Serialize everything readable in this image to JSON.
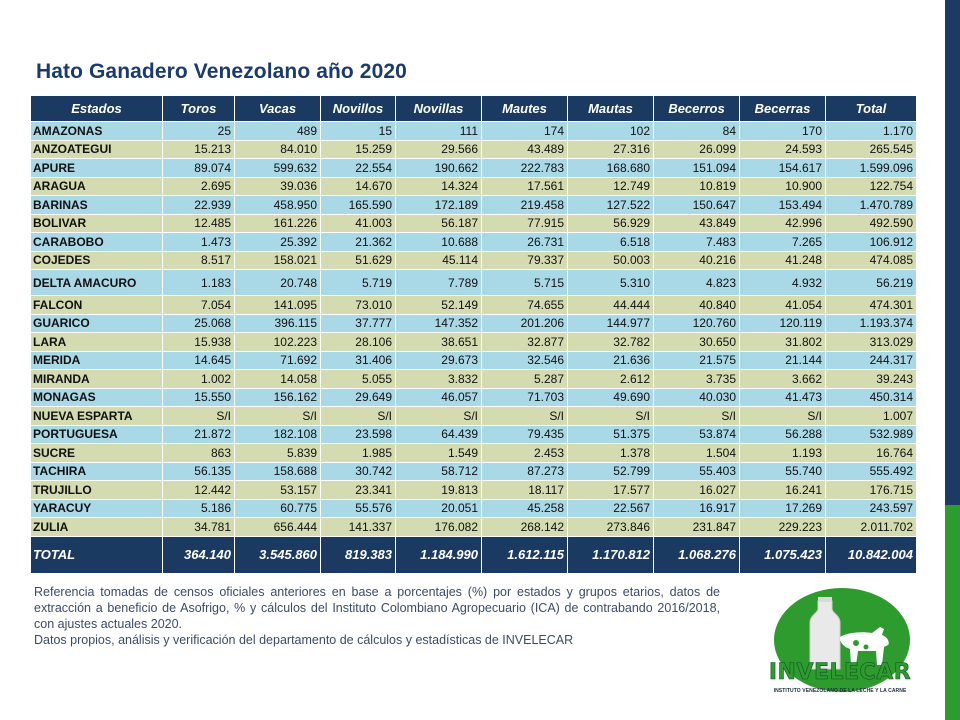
{
  "title": "Hato Ganadero Venezolano año 2020",
  "table": {
    "headers": [
      "Estados",
      "Toros",
      "Vacas",
      "Novillos",
      "Novillas",
      "Mautes",
      "Mautas",
      "Becerros",
      "Becerras",
      "Total"
    ],
    "rows": [
      [
        "AMAZONAS",
        "25",
        "489",
        "15",
        "111",
        "174",
        "102",
        "84",
        "170",
        "1.170"
      ],
      [
        "ANZOATEGUI",
        "15.213",
        "84.010",
        "15.259",
        "29.566",
        "43.489",
        "27.316",
        "26.099",
        "24.593",
        "265.545"
      ],
      [
        "APURE",
        "89.074",
        "599.632",
        "22.554",
        "190.662",
        "222.783",
        "168.680",
        "151.094",
        "154.617",
        "1.599.096"
      ],
      [
        "ARAGUA",
        "2.695",
        "39.036",
        "14.670",
        "14.324",
        "17.561",
        "12.749",
        "10.819",
        "10.900",
        "122.754"
      ],
      [
        "BARINAS",
        "22.939",
        "458.950",
        "165.590",
        "172.189",
        "219.458",
        "127.522",
        "150.647",
        "153.494",
        "1.470.789"
      ],
      [
        "BOLIVAR",
        "12.485",
        "161.226",
        "41.003",
        "56.187",
        "77.915",
        "56.929",
        "43.849",
        "42.996",
        "492.590"
      ],
      [
        "CARABOBO",
        "1.473",
        "25.392",
        "21.362",
        "10.688",
        "26.731",
        "6.518",
        "7.483",
        "7.265",
        "106.912"
      ],
      [
        "COJEDES",
        "8.517",
        "158.021",
        "51.629",
        "45.114",
        "79.337",
        "50.003",
        "40.216",
        "41.248",
        "474.085"
      ],
      [
        "DELTA AMACURO",
        "1.183",
        "20.748",
        "5.719",
        "7.789",
        "5.715",
        "5.310",
        "4.823",
        "4.932",
        "56.219"
      ],
      [
        "FALCON",
        "7.054",
        "141.095",
        "73.010",
        "52.149",
        "74.655",
        "44.444",
        "40.840",
        "41.054",
        "474.301"
      ],
      [
        "GUARICO",
        "25.068",
        "396.115",
        "37.777",
        "147.352",
        "201.206",
        "144.977",
        "120.760",
        "120.119",
        "1.193.374"
      ],
      [
        "LARA",
        "15.938",
        "102.223",
        "28.106",
        "38.651",
        "32.877",
        "32.782",
        "30.650",
        "31.802",
        "313.029"
      ],
      [
        "MERIDA",
        "14.645",
        "71.692",
        "31.406",
        "29.673",
        "32.546",
        "21.636",
        "21.575",
        "21.144",
        "244.317"
      ],
      [
        "MIRANDA",
        "1.002",
        "14.058",
        "5.055",
        "3.832",
        "5.287",
        "2.612",
        "3.735",
        "3.662",
        "39.243"
      ],
      [
        "MONAGAS",
        "15.550",
        "156.162",
        "29.649",
        "46.057",
        "71.703",
        "49.690",
        "40.030",
        "41.473",
        "450.314"
      ],
      [
        "NUEVA ESPARTA",
        "S/I",
        "S/I",
        "S/I",
        "S/I",
        "S/I",
        "S/I",
        "S/I",
        "S/I",
        "1.007"
      ],
      [
        "PORTUGUESA",
        "21.872",
        "182.108",
        "23.598",
        "64.439",
        "79.435",
        "51.375",
        "53.874",
        "56.288",
        "532.989"
      ],
      [
        "SUCRE",
        "863",
        "5.839",
        "1.985",
        "1.549",
        "2.453",
        "1.378",
        "1.504",
        "1.193",
        "16.764"
      ],
      [
        "TACHIRA",
        "56.135",
        "158.688",
        "30.742",
        "58.712",
        "87.273",
        "52.799",
        "55.403",
        "55.740",
        "555.492"
      ],
      [
        "TRUJILLO",
        "12.442",
        "53.157",
        "23.341",
        "19.813",
        "18.117",
        "17.577",
        "16.027",
        "16.241",
        "176.715"
      ],
      [
        "YARACUY",
        "5.186",
        "60.775",
        "55.576",
        "20.051",
        "45.258",
        "22.567",
        "16.917",
        "17.269",
        "243.597"
      ],
      [
        "ZULIA",
        "34.781",
        "656.444",
        "141.337",
        "176.082",
        "268.142",
        "273.846",
        "231.847",
        "229.223",
        "2.011.702"
      ]
    ],
    "total": [
      "TOTAL",
      "364.140",
      "3.545.860",
      "819.383",
      "1.184.990",
      "1.612.115",
      "1.170.812",
      "1.068.276",
      "1.075.423",
      "10.842.004"
    ]
  },
  "note": {
    "line1": "Referencia tomadas de censos oficiales anteriores en base a porcentajes (%) por estados y grupos etarios, datos de extracción a beneficio de Asofrigo, % y cálculos del Instituto Colombiano Agropecuario (ICA) de contrabando 2016/2018, con ajustes actuales 2020.",
    "line2": "Datos propios, análisis y verificación del departamento de cálculos y estadísticas de INVELECAR"
  },
  "logo": {
    "name": "INVELECAR",
    "subtitle": "INSTITUTO VENEZOLANO DE LA LECHE Y LA CARNE",
    "icon": "milk-bottle-cow-icon"
  },
  "colors": {
    "header_bg": "#1b3a61",
    "row_blue": "#a9d8e6",
    "row_green": "#d4dbb0",
    "title": "#1b3b6f",
    "brand_green": "#2e9b2e"
  }
}
